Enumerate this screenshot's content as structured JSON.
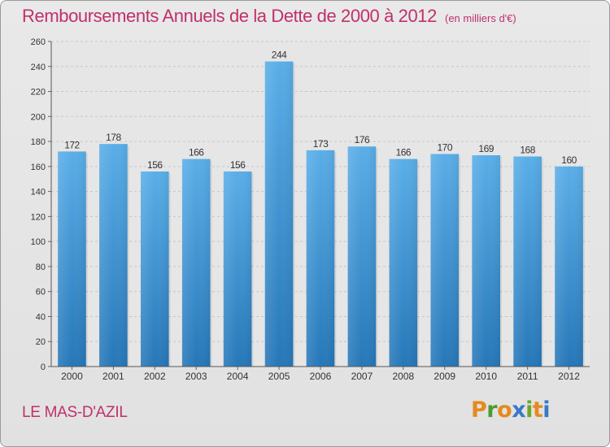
{
  "header": {
    "title": "Remboursements Annuels de la Dette de 2000 à 2012",
    "unit": "(en milliers d'€)"
  },
  "footer": {
    "city": "LE MAS-D'AZIL",
    "logo_text": "Proxiti"
  },
  "colors": {
    "title": "#c0306a",
    "bar_top": "#5aaee8",
    "bar_bottom": "#2677b8",
    "logo_letters": [
      "#e58a1f",
      "#4d9a2e",
      "#e58a1f",
      "#3a78c8",
      "#6aa82a",
      "#e58a1f",
      "#3a78c8"
    ]
  },
  "chart_data": {
    "type": "bar",
    "categories": [
      "2000",
      "2001",
      "2002",
      "2003",
      "2004",
      "2005",
      "2006",
      "2007",
      "2008",
      "2009",
      "2010",
      "2011",
      "2012"
    ],
    "values": [
      172,
      178,
      156,
      166,
      156,
      244,
      173,
      176,
      166,
      170,
      169,
      168,
      160
    ],
    "ylim": [
      0,
      260
    ],
    "yticks": [
      0,
      20,
      40,
      60,
      80,
      100,
      120,
      140,
      160,
      180,
      200,
      220,
      240,
      260
    ],
    "grid": true,
    "legend": "none"
  }
}
